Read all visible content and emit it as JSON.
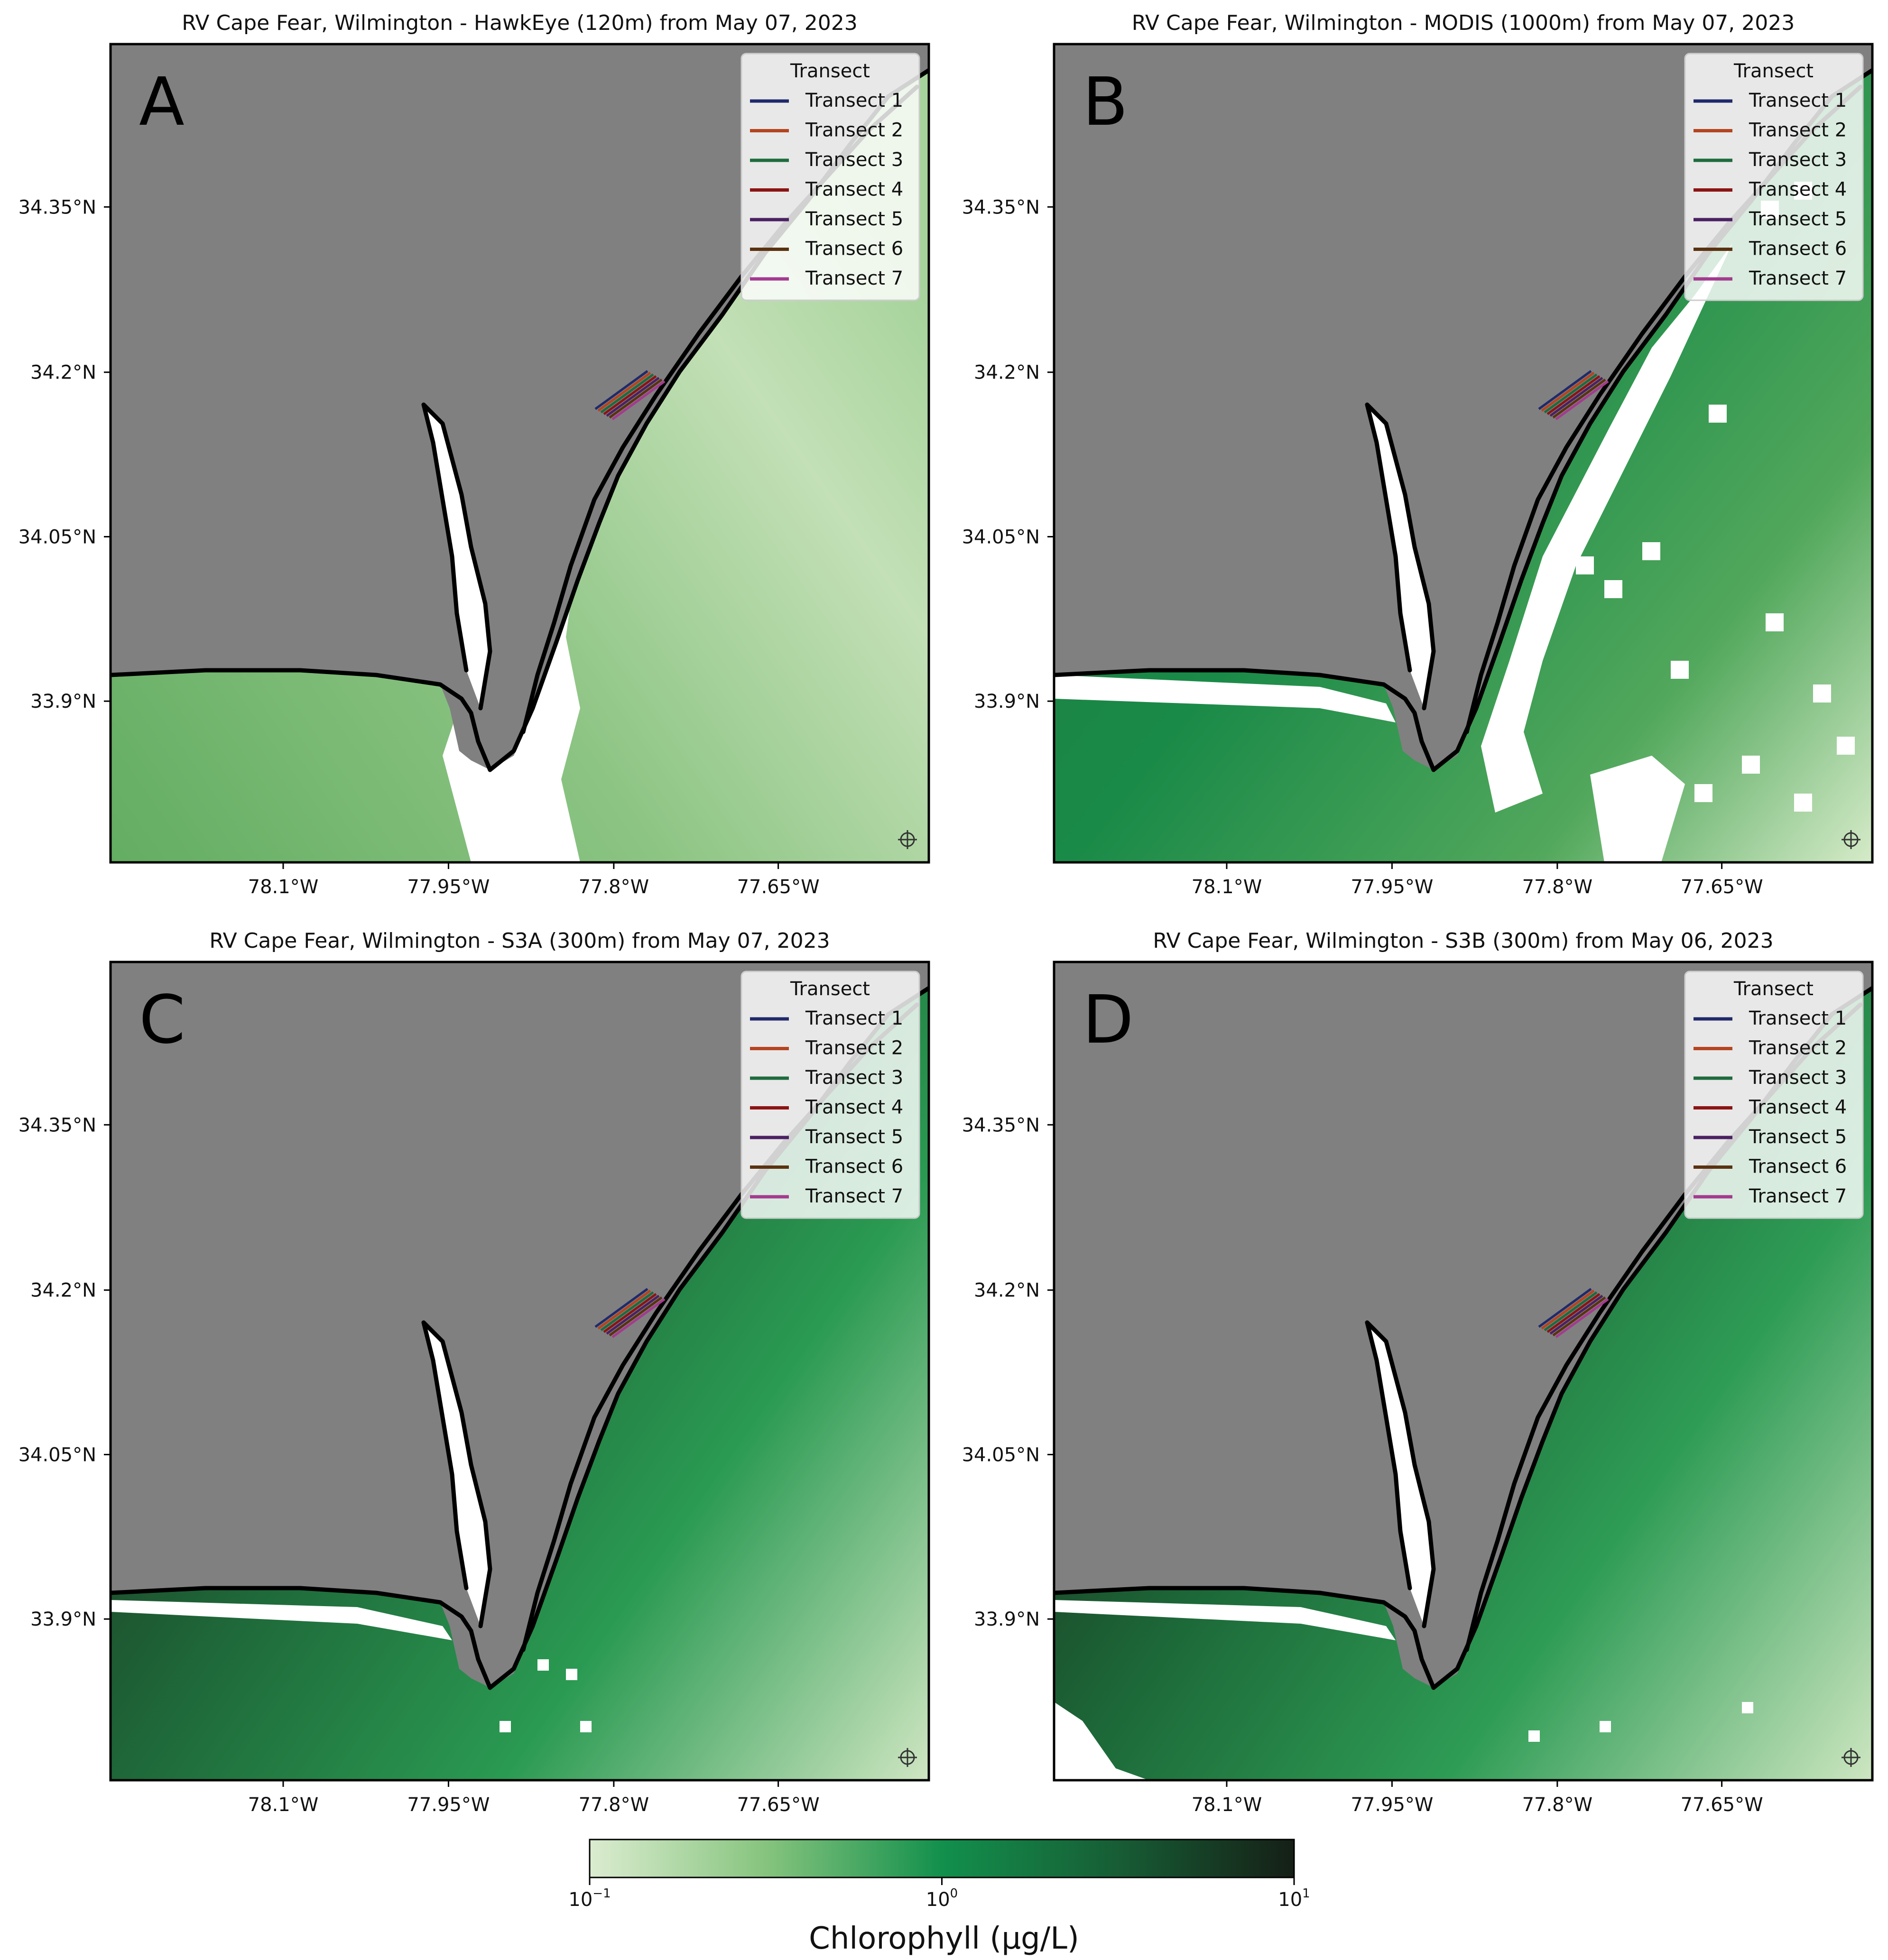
{
  "panels": [
    {
      "letter": "A",
      "title": "RV Cape Fear, Wilmington - HawkEye (120m) from  May 07, 2023",
      "variant": "hawkeye"
    },
    {
      "letter": "B",
      "title": "RV Cape Fear, Wilmington - MODIS (1000m) from  May 07, 2023",
      "variant": "modis"
    },
    {
      "letter": "C",
      "title": "RV Cape Fear, Wilmington - S3A (300m) from  May 07, 2023",
      "variant": "s3a"
    },
    {
      "letter": "D",
      "title": "RV Cape Fear, Wilmington - S3B (300m) from May 06, 2023",
      "variant": "s3b"
    }
  ],
  "axes": {
    "x_ticks": [
      "78.1°W",
      "77.95°W",
      "77.8°W",
      "77.65°W"
    ],
    "y_ticks": [
      "34.35°N",
      "34.2°N",
      "34.05°N",
      "33.9°N"
    ]
  },
  "legend": {
    "title": "Transect",
    "items": [
      {
        "label": "Transect 1",
        "color": "#1f2a6b"
      },
      {
        "label": "Transect 2",
        "color": "#b5441f"
      },
      {
        "label": "Transect 3",
        "color": "#1d6b3e"
      },
      {
        "label": "Transect 4",
        "color": "#8b1414"
      },
      {
        "label": "Transect 5",
        "color": "#4b2063"
      },
      {
        "label": "Transect 6",
        "color": "#5a3210"
      },
      {
        "label": "Transect 7",
        "color": "#a43a8f"
      }
    ]
  },
  "colorbar": {
    "label": "Chlorophyll (µg/L)",
    "ticks": [
      {
        "base": "10",
        "exp": "−1"
      },
      {
        "base": "10",
        "exp": "0"
      },
      {
        "base": "10",
        "exp": "1"
      }
    ]
  },
  "colors": {
    "land": "#808080",
    "no_data": "#ffffff",
    "chl_low": "#dbecd0",
    "chl_mid": "#12904c",
    "chl_high": "#151f16"
  }
}
